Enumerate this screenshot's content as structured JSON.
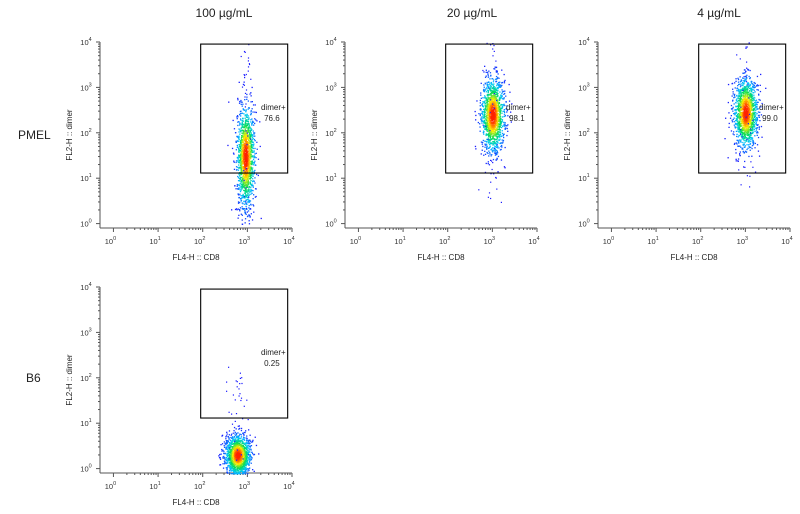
{
  "columns": [
    "100 µg/mL",
    "20 µg/mL",
    "4 µg/mL"
  ],
  "rows": [
    "PMEL",
    "B6"
  ],
  "chart_data": [
    {
      "type": "scatter",
      "row": "PMEL",
      "column": "100 µg/mL",
      "xlabel": "FL4-H :: CD8",
      "ylabel": "FL2-H :: dimer",
      "xscale": "log",
      "yscale": "log",
      "xlim": [
        0.5,
        10000
      ],
      "ylim": [
        0.8,
        10000
      ],
      "xticks": [
        1,
        10,
        100,
        1000,
        10000
      ],
      "yticks": [
        1,
        10,
        100,
        1000,
        10000
      ],
      "tick_exponents": [
        "0",
        "1",
        "2",
        "3",
        "4"
      ],
      "tick_base": "10",
      "gate": {
        "name": "dimer+",
        "percent": "76.6",
        "x": [
          90,
          8000
        ],
        "y": [
          13,
          9000
        ]
      },
      "population": {
        "center_x": 900,
        "center_y": 30,
        "spread_log_x": 0.1,
        "spread_log_y": 0.55,
        "ymin": 1,
        "ymax": 1500
      },
      "density": "dense"
    },
    {
      "type": "scatter",
      "row": "PMEL",
      "column": "20 µg/mL",
      "xlabel": "FL4-H :: CD8",
      "ylabel": "FL2-H :: dimer",
      "xscale": "log",
      "yscale": "log",
      "xlim": [
        0.5,
        10000
      ],
      "ylim": [
        0.8,
        10000
      ],
      "xticks": [
        1,
        10,
        100,
        1000,
        10000
      ],
      "yticks": [
        1,
        10,
        100,
        1000,
        10000
      ],
      "tick_exponents": [
        "0",
        "1",
        "2",
        "3",
        "4"
      ],
      "tick_base": "10",
      "gate": {
        "name": "dimer+",
        "percent": "98.1",
        "x": [
          90,
          8000
        ],
        "y": [
          13,
          9000
        ]
      },
      "population": {
        "center_x": 1000,
        "center_y": 250,
        "spread_log_x": 0.13,
        "spread_log_y": 0.4,
        "ymin": 3,
        "ymax": 3000
      },
      "density": "dense"
    },
    {
      "type": "scatter",
      "row": "PMEL",
      "column": "4 µg/mL",
      "xlabel": "FL4-H :: CD8",
      "ylabel": "FL2-H :: dimer",
      "xscale": "log",
      "yscale": "log",
      "xlim": [
        0.5,
        10000
      ],
      "ylim": [
        0.8,
        10000
      ],
      "xticks": [
        1,
        10,
        100,
        1000,
        10000
      ],
      "yticks": [
        1,
        10,
        100,
        1000,
        10000
      ],
      "tick_exponents": [
        "0",
        "1",
        "2",
        "3",
        "4"
      ],
      "tick_base": "10",
      "gate": {
        "name": "dimer+",
        "percent": "99.0",
        "x": [
          90,
          8000
        ],
        "y": [
          13,
          9000
        ]
      },
      "population": {
        "center_x": 1000,
        "center_y": 280,
        "spread_log_x": 0.13,
        "spread_log_y": 0.38,
        "ymin": 5,
        "ymax": 2500
      },
      "density": "dense"
    },
    {
      "type": "scatter",
      "row": "B6",
      "column": "100 µg/mL",
      "xlabel": "FL4-H :: CD8",
      "ylabel": "FL2-H :: dimer",
      "xscale": "log",
      "yscale": "log",
      "xlim": [
        0.5,
        10000
      ],
      "ylim": [
        0.8,
        10000
      ],
      "xticks": [
        1,
        10,
        100,
        1000,
        10000
      ],
      "yticks": [
        1,
        10,
        100,
        1000,
        10000
      ],
      "tick_exponents": [
        "0",
        "1",
        "2",
        "3",
        "4"
      ],
      "tick_base": "10",
      "gate": {
        "name": "dimer+",
        "percent": "0.25",
        "x": [
          90,
          8000
        ],
        "y": [
          13,
          9000
        ]
      },
      "population": {
        "center_x": 600,
        "center_y": 2,
        "spread_log_x": 0.14,
        "spread_log_y": 0.22,
        "ymin": 0.8,
        "ymax": 12
      },
      "density": "dense"
    }
  ],
  "colors": {
    "low": "#1a1aff",
    "mid_low": "#00c8ff",
    "mid": "#00dd55",
    "mid_high": "#ffee00",
    "high": "#ff2200",
    "gate_line": "#000000",
    "axis": "#555555"
  }
}
